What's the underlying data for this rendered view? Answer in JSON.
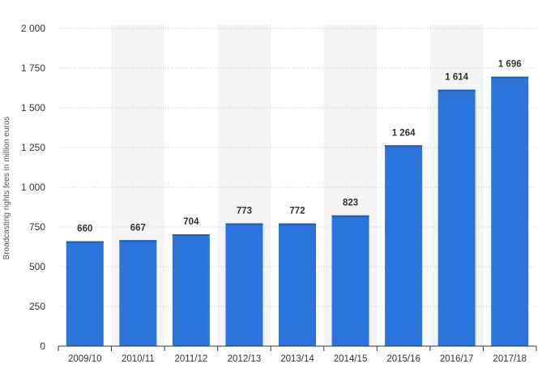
{
  "chart_data": {
    "type": "bar",
    "categories": [
      "2009/10",
      "2010/11",
      "2011/12",
      "2012/13",
      "2013/14",
      "2014/15",
      "2015/16",
      "2016/17",
      "2017/18"
    ],
    "values": [
      660,
      667,
      704,
      773,
      772,
      823,
      1264,
      1614,
      1696
    ],
    "value_labels": [
      "660",
      "667",
      "704",
      "773",
      "772",
      "823",
      "1 264",
      "1 614",
      "1 696"
    ],
    "ylabel": "Broadcasting rights fees in million euros",
    "ylim": [
      0,
      2000
    ],
    "yticks": [
      0,
      250,
      500,
      750,
      1000,
      1250,
      1500,
      1750,
      2000
    ],
    "ytick_labels": [
      "0",
      "250",
      "500",
      "750",
      "1 000",
      "1 250",
      "1 500",
      "1 750",
      "2 000"
    ],
    "grid": "horizontal dotted",
    "colors": {
      "bar": "#2a74dc",
      "bar_top": "#1e5db5",
      "band": "#f4f4f4",
      "grid": "#c8c8c8",
      "axis": "#333333"
    }
  }
}
